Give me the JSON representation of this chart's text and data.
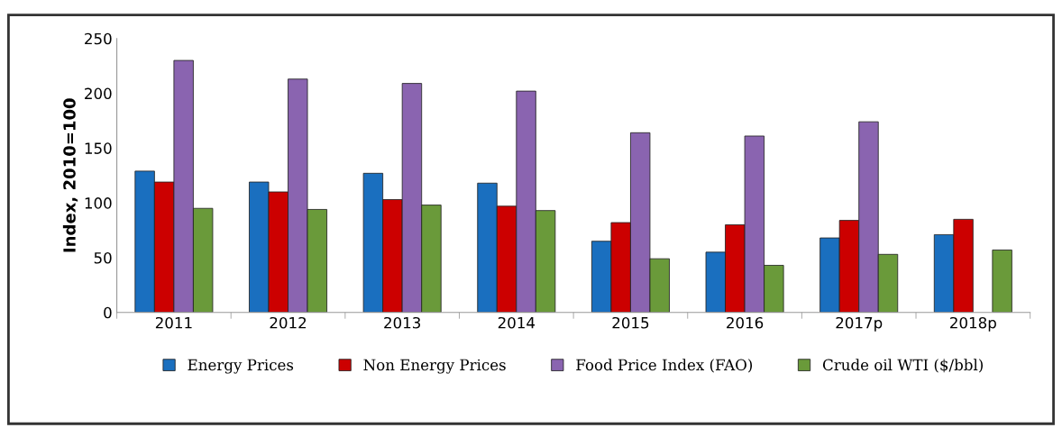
{
  "chart_data": {
    "type": "bar",
    "ylabel": "Index, 2010=100",
    "categories": [
      "2011",
      "2012",
      "2013",
      "2014",
      "2015",
      "2016",
      "2017p",
      "2018p"
    ],
    "series": [
      {
        "name": "Energy Prices",
        "color": "#1a6fbf",
        "values": [
          129,
          119,
          127,
          118,
          65,
          55,
          68,
          71
        ]
      },
      {
        "name": "Non Energy Prices",
        "color": "#cc0000",
        "values": [
          119,
          110,
          103,
          97,
          82,
          80,
          84,
          85
        ]
      },
      {
        "name": "Food Price Index (FAO)",
        "color": "#8a64b0",
        "values": [
          230,
          213,
          209,
          202,
          164,
          161,
          174,
          null
        ]
      },
      {
        "name": "Crude oil WTI ($/bbl)",
        "color": "#6a9a3a",
        "values": [
          95,
          94,
          98,
          93,
          49,
          43,
          53,
          57
        ]
      }
    ],
    "ylim": [
      0,
      250
    ],
    "yticks": [
      0,
      50,
      100,
      150,
      200,
      250
    ],
    "legend": "bottom",
    "grid": false
  }
}
